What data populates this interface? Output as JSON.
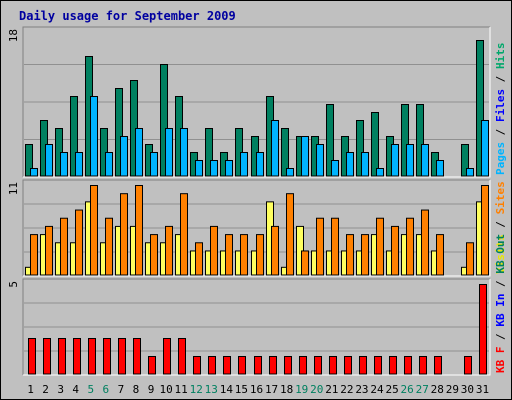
{
  "chart_data": {
    "type": "bar",
    "title": "Daily usage for September 2009",
    "x": [
      "1",
      "2",
      "3",
      "4",
      "5",
      "6",
      "7",
      "8",
      "9",
      "10",
      "11",
      "12",
      "13",
      "14",
      "15",
      "16",
      "17",
      "18",
      "19",
      "20",
      "21",
      "22",
      "23",
      "24",
      "25",
      "26",
      "27",
      "28",
      "29",
      "30",
      "31"
    ],
    "weekend_days": [
      5,
      6,
      12,
      13,
      19,
      20,
      26,
      27
    ],
    "panels": [
      {
        "ymax_label": "18",
        "ylim": [
          0,
          18
        ],
        "axis_labels": [
          {
            "text": "Pages",
            "color": "#00b4ff"
          },
          {
            "text": "Files",
            "color": "#0000ff"
          },
          {
            "text": "Hits",
            "color": "#00a86b"
          }
        ],
        "series": [
          {
            "name": "Hits",
            "color": "#008060",
            "values": [
              4,
              7,
              6,
              10,
              15,
              6,
              11,
              12,
              4,
              14,
              10,
              3,
              6,
              3,
              6,
              5,
              10,
              6,
              5,
              5,
              9,
              5,
              7,
              8,
              5,
              9,
              9,
              3,
              0,
              4,
              17
            ]
          },
          {
            "name": "Files",
            "color": "#00b4ff",
            "values": [
              1,
              4,
              3,
              3,
              10,
              3,
              5,
              6,
              3,
              6,
              6,
              2,
              2,
              2,
              3,
              3,
              7,
              1,
              5,
              4,
              2,
              3,
              3,
              1,
              4,
              4,
              4,
              2,
              0,
              1,
              7
            ]
          }
        ]
      },
      {
        "ymax_label": "11",
        "ylim": [
          0,
          11
        ],
        "axis_labels": [
          {
            "text": "Visits",
            "color": "#e8e800"
          },
          {
            "text": "Sites",
            "color": "#ff8000"
          }
        ],
        "series": [
          {
            "name": "Visits",
            "color": "#ffff60",
            "values": [
              1,
              5,
              4,
              4,
              9,
              4,
              6,
              6,
              4,
              4,
              5,
              3,
              3,
              3,
              3,
              3,
              9,
              1,
              6,
              3,
              3,
              3,
              3,
              5,
              3,
              5,
              5,
              3,
              0,
              1,
              9
            ]
          },
          {
            "name": "Sites",
            "color": "#ff8000",
            "values": [
              5,
              6,
              7,
              8,
              11,
              7,
              10,
              11,
              5,
              6,
              10,
              4,
              6,
              5,
              5,
              5,
              6,
              10,
              3,
              7,
              7,
              5,
              5,
              7,
              6,
              7,
              8,
              5,
              0,
              4,
              11
            ]
          }
        ]
      },
      {
        "ymax_label": "5",
        "ylim": [
          0,
          5
        ],
        "axis_labels": [
          {
            "text": "KB F",
            "color": "#ff0000"
          },
          {
            "text": "KB In",
            "color": "#0000ff"
          },
          {
            "text": "KB Out",
            "color": "#008060"
          }
        ],
        "series": [
          {
            "name": "KB F",
            "color": "#ff0000",
            "values": [
              2,
              2,
              2,
              2,
              2,
              2,
              2,
              2,
              1,
              2,
              2,
              1,
              1,
              1,
              1,
              1,
              1,
              1,
              1,
              1,
              1,
              1,
              1,
              1,
              1,
              1,
              1,
              1,
              0,
              1,
              5
            ]
          }
        ]
      }
    ]
  }
}
